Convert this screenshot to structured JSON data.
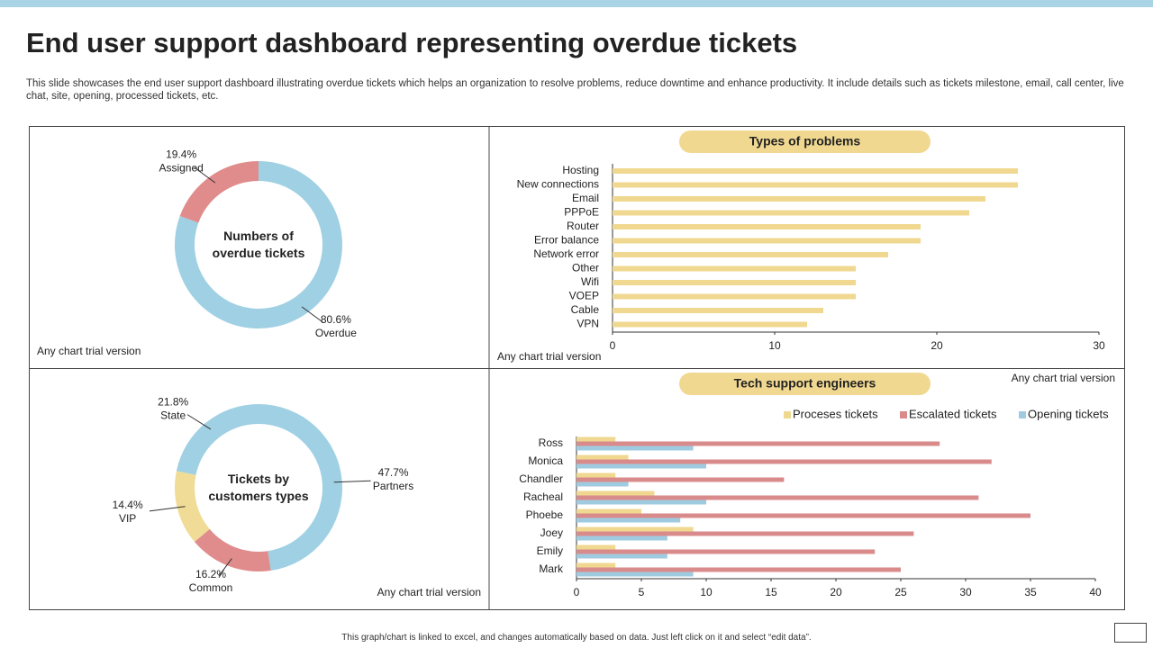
{
  "title": "End user support dashboard representing overdue tickets",
  "description": "This slide showcases the end user support dashboard illustrating overdue tickets which helps an organization to resolve problems, reduce downtime and enhance productivity. It include details such as tickets milestone, email, call center, live chat, site, opening, processed tickets, etc.",
  "footer": "This graph/chart is linked to excel, and changes automatically based on data. Just left click on it and select “edit data”.",
  "chart_data": [
    {
      "type": "pie",
      "center_label": "Numbers of overdue tickets",
      "categories": [
        "Overdue",
        "Assigned"
      ],
      "values": [
        80.6,
        19.4
      ],
      "value_labels": [
        "80.6%",
        "19.4%"
      ],
      "colors": [
        "#9fd0e3",
        "#e08c8c"
      ],
      "watermark": "Any chart trial version"
    },
    {
      "type": "bar",
      "title": "Types of problems",
      "categories": [
        "Hosting",
        "New connections",
        "Email",
        "PPPoE",
        "Router",
        "Error balance",
        "Network error",
        "Other",
        "Wifi",
        "VOEP",
        "Cable",
        "VPN"
      ],
      "values": [
        25,
        25,
        23,
        22,
        19,
        19,
        17,
        15,
        15,
        15,
        13,
        12
      ],
      "color": "#f0d890",
      "xlim": [
        0,
        30
      ],
      "xticks": [
        0,
        10,
        20,
        30
      ],
      "watermark": "Any chart trial version"
    },
    {
      "type": "pie",
      "center_label": "Tickets by customers types",
      "categories": [
        "Partners",
        "Common",
        "VIP",
        "State"
      ],
      "values": [
        47.7,
        16.2,
        14.4,
        21.8
      ],
      "value_labels": [
        "47.7%",
        "16.2%",
        "14.4%",
        "21.8%"
      ],
      "colors": [
        "#9fd0e3",
        "#e08c8c",
        "#f0dc96",
        "#9fd0e3"
      ],
      "watermark": "Any chart trial version"
    },
    {
      "type": "bar",
      "title": "Tech support engineers",
      "categories": [
        "Ross",
        "Monica",
        "Chandler",
        "Racheal",
        "Phoebe",
        "Joey",
        "Emily",
        "Mark"
      ],
      "series": [
        {
          "name": "Proceses tickets",
          "color": "#f0d890",
          "values": [
            3,
            4,
            3,
            6,
            5,
            9,
            3,
            3
          ]
        },
        {
          "name": "Escalated tickets",
          "color": "#d98b8b",
          "values": [
            28,
            32,
            16,
            31,
            35,
            26,
            23,
            25
          ]
        },
        {
          "name": "Opening tickets",
          "color": "#9fcbe0",
          "values": [
            9,
            10,
            4,
            10,
            8,
            7,
            7,
            9
          ]
        }
      ],
      "xlim": [
        0,
        40
      ],
      "xticks": [
        0,
        5,
        10,
        15,
        20,
        25,
        30,
        35,
        40
      ],
      "watermark": "Any chart trial version"
    }
  ]
}
